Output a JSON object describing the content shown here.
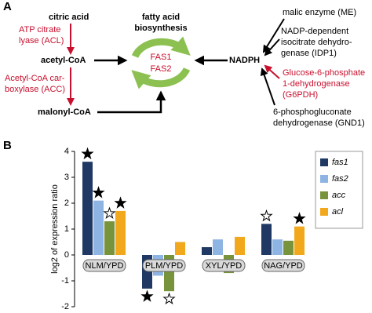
{
  "panel_labels": [
    "A",
    "B"
  ],
  "diagram": {
    "substrates": [
      "citric acid",
      "acetyl-CoA",
      "malonyl-CoA"
    ],
    "enzymes_left": [
      [
        "ATP citrate",
        "lyase (ACL)"
      ],
      [
        "Acetyl-CoA car-",
        "boxylase (ACC)"
      ]
    ],
    "process": [
      "fatty acid",
      "biosynthesis"
    ],
    "complex": [
      "FAS1",
      "FAS2"
    ],
    "cofactor": "NADPH",
    "sources": [
      [
        "malic enzyme (ME)"
      ],
      [
        "NADP-dependent",
        "isocitrate dehydro-",
        "genase (IDP1)"
      ],
      [
        "Glucose-6-phosphate",
        "1-dehydrogenase",
        "(G6PDH)"
      ],
      [
        "6-phosphogluconate",
        "dehydrogenase (GND1)"
      ]
    ]
  },
  "chart_data": {
    "type": "bar",
    "y_label": "log2 of expression ratio",
    "categories": [
      "NLM/YPD",
      "PLM/YPD",
      "XYL/YPD",
      "NAG/YPD"
    ],
    "ylim": [
      -2,
      4
    ],
    "yticks": [
      -2,
      -1,
      0,
      1,
      2,
      3,
      4
    ],
    "legend": "top-right",
    "series": [
      {
        "name": "fas1",
        "color": "#1f3864",
        "values": [
          3.6,
          -1.3,
          0.3,
          1.2
        ],
        "stars": [
          "filled",
          "filled",
          null,
          "open"
        ]
      },
      {
        "name": "fas2",
        "color": "#8db4e2",
        "values": [
          2.1,
          -0.8,
          0.6,
          0.6
        ],
        "stars": [
          "filled",
          null,
          null,
          null
        ]
      },
      {
        "name": "acc",
        "color": "#77933c",
        "values": [
          1.3,
          -1.4,
          -0.7,
          0.55
        ],
        "stars": [
          "open",
          "open",
          null,
          null
        ]
      },
      {
        "name": "acl",
        "color": "#f2a81d",
        "values": [
          1.7,
          0.5,
          0.7,
          1.1
        ],
        "stars": [
          "filled",
          null,
          null,
          "filled"
        ]
      }
    ]
  }
}
